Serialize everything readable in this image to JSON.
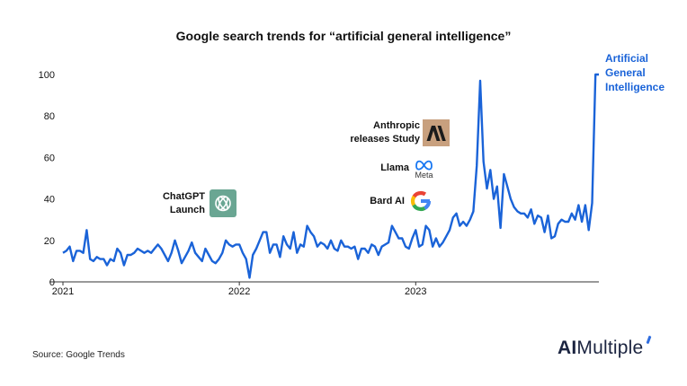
{
  "chart_data": {
    "type": "line",
    "title": "Google search trends for “artificial general intelligence”",
    "xlabel": "",
    "ylabel": "",
    "x_ticks": [
      "2021",
      "2022",
      "2023"
    ],
    "y_ticks": [
      0,
      20,
      40,
      60,
      80,
      100
    ],
    "ylim": [
      0,
      100
    ],
    "grid": false,
    "line_color": "#1a63d8",
    "series": [
      {
        "name": "Artificial General Intelligence",
        "values": [
          14,
          15,
          17,
          10,
          15,
          15,
          14,
          25,
          11,
          10,
          12,
          11,
          11,
          8,
          11,
          10,
          16,
          14,
          8,
          13,
          13,
          14,
          16,
          15,
          14,
          15,
          14,
          16,
          18,
          16,
          13,
          10,
          14,
          20,
          15,
          9,
          12,
          15,
          19,
          14,
          12,
          10,
          16,
          13,
          10,
          9,
          11,
          14,
          20,
          18,
          17,
          18,
          18,
          14,
          11,
          2,
          13,
          16,
          20,
          24,
          24,
          14,
          18,
          18,
          12,
          22,
          18,
          16,
          24,
          14,
          18,
          17,
          27,
          24,
          22,
          17,
          19,
          18,
          16,
          20,
          16,
          15,
          20,
          17,
          17,
          16,
          17,
          11,
          16,
          16,
          14,
          18,
          17,
          13,
          17,
          18,
          19,
          27,
          24,
          21,
          21,
          17,
          16,
          21,
          25,
          17,
          18,
          27,
          25,
          17,
          21,
          17,
          19,
          22,
          25,
          31,
          33,
          27,
          29,
          27,
          30,
          34,
          56,
          97,
          58,
          45,
          54,
          40,
          46,
          26,
          52,
          46,
          40,
          36,
          34,
          33,
          33,
          31,
          35,
          28,
          32,
          31,
          24,
          32,
          21,
          22,
          28,
          30,
          29,
          29,
          33,
          30,
          37,
          29,
          37,
          25,
          38,
          100,
          100
        ]
      }
    ],
    "annotations": [
      {
        "text_lines": [
          "ChatGPT",
          "Launch"
        ],
        "icon": "chatgpt-logo-icon"
      },
      {
        "text_lines": [
          "Anthropic",
          "releases Study"
        ],
        "icon": "anthropic-logo-icon"
      },
      {
        "text_lines": [
          "Llama"
        ],
        "icon": "meta-logo-icon",
        "icon_text": "Meta"
      },
      {
        "text_lines": [
          "Bard AI"
        ],
        "icon": "google-logo-icon"
      }
    ],
    "end_label_lines": [
      "Artificial",
      "General",
      "Intelligence"
    ]
  },
  "footer": {
    "source": "Source: Google Trends",
    "brand_part1": "AI",
    "brand_part2": "Multiple"
  }
}
